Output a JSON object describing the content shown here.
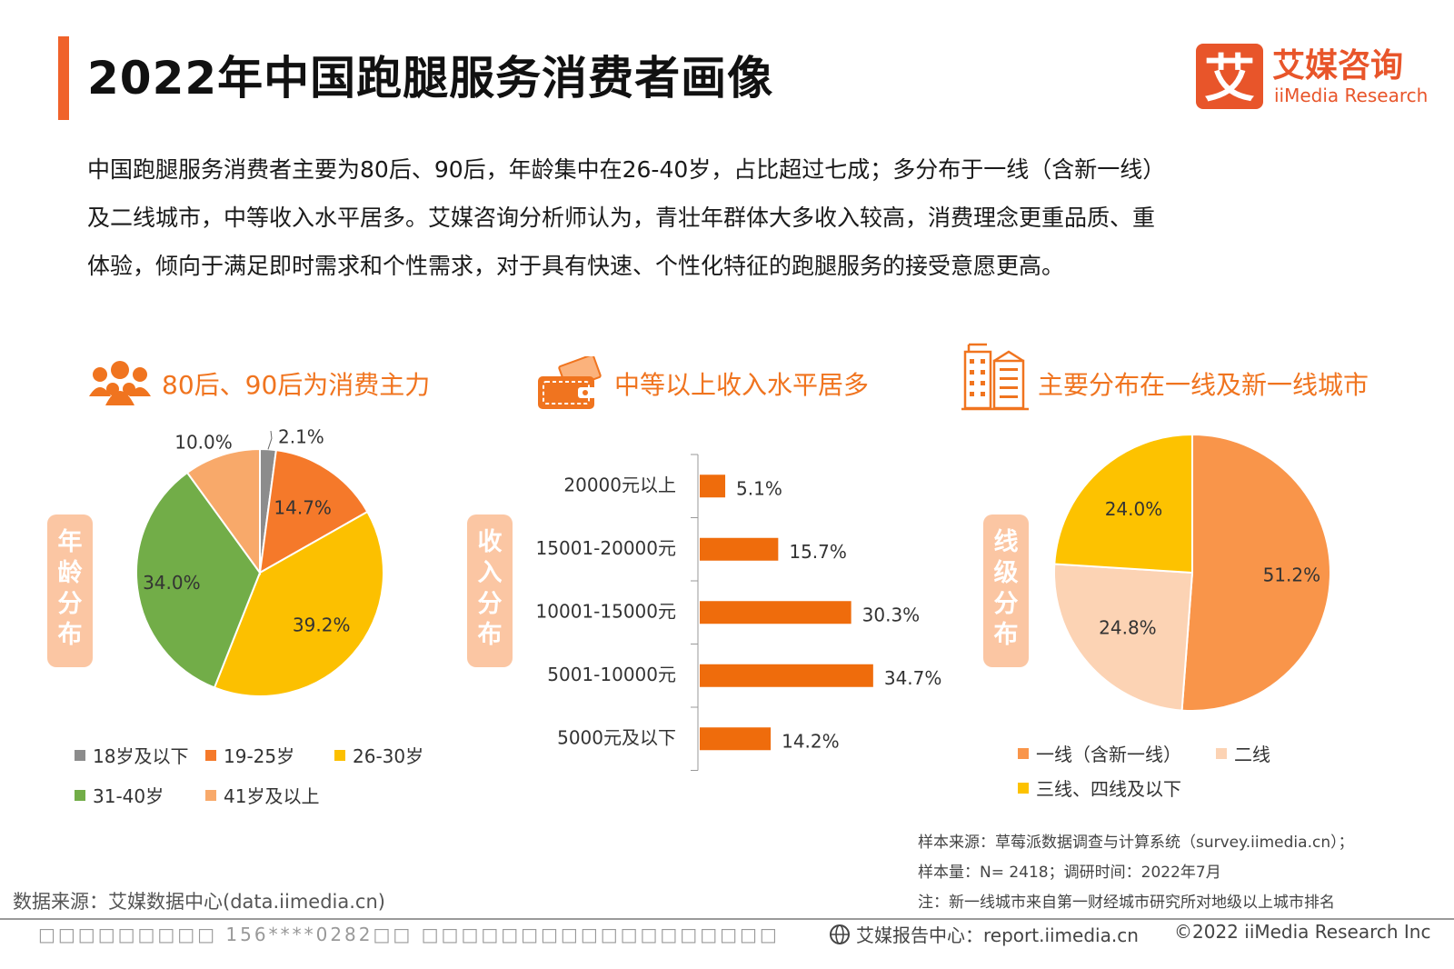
{
  "header": {
    "title": "2022年中国跑腿服务消费者画像",
    "logo_cn": "艾媒咨询",
    "logo_en": "iiMedia Research",
    "logo_char": "艾"
  },
  "summary": {
    "lines": [
      "中国跑腿服务消费者主要为80后、90后，年龄集中在26-40岁，占比超过七成；多分布于一线（含新一线）",
      "及二线城市，中等收入水平居多。艾媒咨询分析师认为，青壮年群体大多收入较高，消费理念更重品质、重",
      "体验，倾向于满足即时需求和个性需求，对于具有快速、个性化特征的跑腿服务的接受意愿更高。"
    ]
  },
  "sections": {
    "age": {
      "title": "80后、90后为消费主力",
      "vlabel": [
        "年",
        "龄",
        "分",
        "布"
      ]
    },
    "income": {
      "title": "中等以上收入水平居多",
      "vlabel": [
        "收",
        "入",
        "分",
        "布"
      ]
    },
    "city": {
      "title": "主要分布在一线及新一线城市",
      "vlabel": [
        "线",
        "级",
        "分",
        "布"
      ]
    }
  },
  "colors": {
    "accent": "#f0741f",
    "title_bar": "#f0622a",
    "bar": "#ef6c0c",
    "gray": "#8c8c8c",
    "orange": "#f5792a",
    "yellow": "#fcc000",
    "green": "#72ad48",
    "light_orange": "#f8a96a",
    "city1": "#f9954a",
    "city2": "#fcd3b4",
    "city3": "#fdc200"
  },
  "chart_data": [
    {
      "type": "pie",
      "name": "年龄分布",
      "labels": [
        "18岁及以下",
        "19-25岁",
        "26-30岁",
        "31-40岁",
        "41岁及以上"
      ],
      "values": [
        2.1,
        14.7,
        39.2,
        34.0,
        10.0
      ],
      "value_labels": [
        "2.1%",
        "14.7%",
        "39.2%",
        "34.0%",
        "10.0%"
      ],
      "colors": [
        "#8c8c8c",
        "#f5792a",
        "#fcc000",
        "#72ad48",
        "#f8a96a"
      ],
      "legend_position": "bottom"
    },
    {
      "type": "bar",
      "orientation": "horizontal",
      "name": "收入分布",
      "categories": [
        "20000元以上",
        "15001-20000元",
        "10001-15000元",
        "5001-10000元",
        "5000元及以下"
      ],
      "values": [
        5.1,
        15.7,
        30.3,
        34.7,
        14.2
      ],
      "value_labels": [
        "5.1%",
        "15.7%",
        "30.3%",
        "34.7%",
        "14.2%"
      ],
      "color": "#ef6c0c"
    },
    {
      "type": "pie",
      "name": "线级分布",
      "labels": [
        "一线（含新一线）",
        "二线",
        "三线、四线及以下"
      ],
      "values": [
        51.2,
        24.8,
        24.0
      ],
      "value_labels": [
        "51.2%",
        "24.8%",
        "24.0%"
      ],
      "colors": [
        "#f9954a",
        "#fcd3b4",
        "#fdc200"
      ],
      "legend_position": "bottom"
    }
  ],
  "notes": {
    "source": "样本来源：草莓派数据调查与计算系统（survey.iimedia.cn）；",
    "sample": "样本量：N= 2418；调研时间：2022年7月",
    "note": "注：新一线城市来自第一财经城市研究所对地级以上城市排名"
  },
  "footer": {
    "datasource": "数据来源：艾媒数据中心(data.iimedia.cn)",
    "watermark": "□□□□□□□□□ 156****0282□□ □□□□□□□□□□□□□□□□□□",
    "report": "艾媒报告中心：report.iimedia.cn",
    "copyright": "©2022  iiMedia Research  Inc"
  }
}
